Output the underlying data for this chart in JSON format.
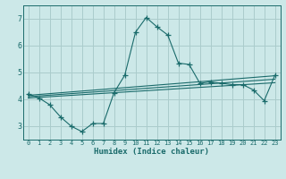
{
  "xlabel": "Humidex (Indice chaleur)",
  "background_color": "#cce8e8",
  "grid_color": "#aacccc",
  "line_color": "#1a6b6b",
  "xlim": [
    -0.5,
    23.5
  ],
  "ylim": [
    2.5,
    7.5
  ],
  "xticks": [
    0,
    1,
    2,
    3,
    4,
    5,
    6,
    7,
    8,
    9,
    10,
    11,
    12,
    13,
    14,
    15,
    16,
    17,
    18,
    19,
    20,
    21,
    22,
    23
  ],
  "yticks": [
    3,
    4,
    5,
    6,
    7
  ],
  "series1_x": [
    0,
    1,
    2,
    3,
    4,
    5,
    6,
    7,
    8,
    9,
    10,
    11,
    12,
    13,
    14,
    15,
    16,
    17,
    18,
    19,
    20,
    21,
    22,
    23
  ],
  "series1_y": [
    4.2,
    4.05,
    3.8,
    3.35,
    3.0,
    2.8,
    3.1,
    3.1,
    4.25,
    4.9,
    6.5,
    7.05,
    6.7,
    6.4,
    5.35,
    5.3,
    4.6,
    4.65,
    4.6,
    4.55,
    4.55,
    4.35,
    3.95,
    4.9
  ],
  "series2_x": [
    0,
    23
  ],
  "series2_y": [
    4.05,
    4.62
  ],
  "series3_x": [
    0,
    23
  ],
  "series3_y": [
    4.1,
    4.75
  ],
  "series4_x": [
    0,
    23
  ],
  "series4_y": [
    4.15,
    4.88
  ]
}
